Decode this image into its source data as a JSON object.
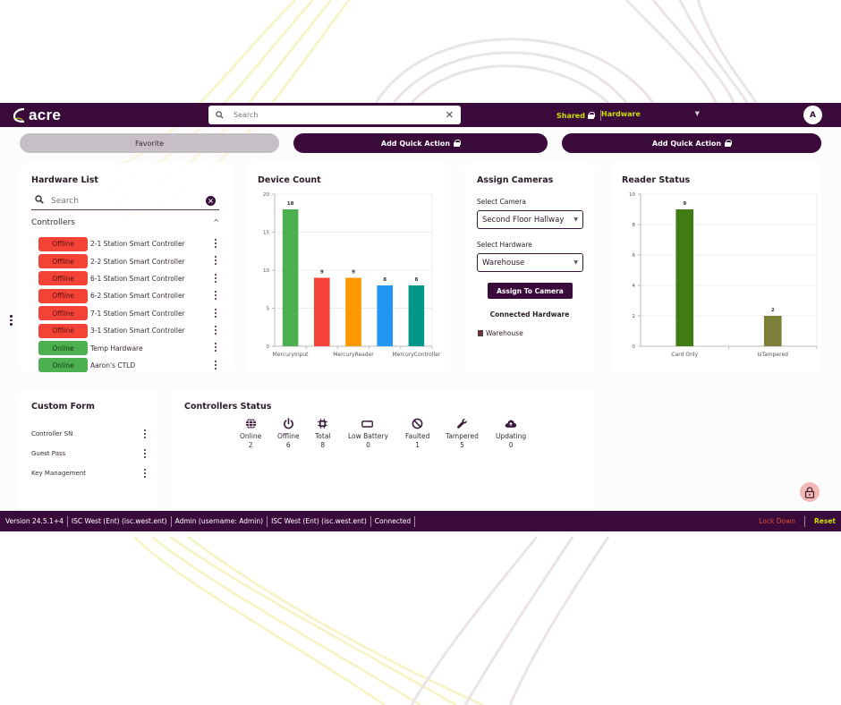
{
  "header": {
    "logo_text": "acre",
    "search": {
      "placeholder": "Search",
      "value": ""
    },
    "shared_label": "Shared",
    "hardware_select": "Hardware",
    "avatar_initial": "A"
  },
  "quick_actions": [
    {
      "label": "Favorite",
      "locked": false
    },
    {
      "label": "Add Quick Action",
      "locked": true
    },
    {
      "label": "Add Quick Action",
      "locked": true
    }
  ],
  "hardware_list": {
    "title": "Hardware List",
    "search_placeholder": "Search",
    "group": "Controllers",
    "items": [
      {
        "status": "Offline",
        "name": "2-1 Station Smart Controller"
      },
      {
        "status": "Offline",
        "name": "2-2 Station Smart Controller"
      },
      {
        "status": "Offline",
        "name": "6-1 Station Smart Controller"
      },
      {
        "status": "Offline",
        "name": "6-2 Station Smart Controller"
      },
      {
        "status": "Offline",
        "name": "7-1 Station Smart Controller"
      },
      {
        "status": "Offline",
        "name": "3-1 Station Smart Controller"
      },
      {
        "status": "Online",
        "name": "Temp Hardware"
      },
      {
        "status": "Online",
        "name": "Aaron's CTLD"
      }
    ]
  },
  "device_count": {
    "title": "Device Count"
  },
  "assign_cameras": {
    "title": "Assign Cameras",
    "camera_label": "Select Camera",
    "camera_value": "Second Floor Hallway",
    "hardware_label": "Select Hardware",
    "hardware_value": "Warehouse",
    "button": "Assign To Camera",
    "connected_title": "Connected Hardware",
    "connected_items": [
      "Warehouse"
    ]
  },
  "reader_status": {
    "title": "Reader Status"
  },
  "custom_form": {
    "title": "Custom Form",
    "items": [
      "Controller SN",
      "Guest Pass",
      "Key Management"
    ]
  },
  "controllers_status": {
    "title": "Controllers Status",
    "stats": [
      {
        "icon": "globe-icon",
        "label": "Online",
        "value": "2"
      },
      {
        "icon": "power-icon",
        "label": "Offline",
        "value": "6"
      },
      {
        "icon": "chip-icon",
        "label": "Total",
        "value": "8"
      },
      {
        "icon": "battery-low-icon",
        "label": "Low Battery",
        "value": "0"
      },
      {
        "icon": "block-icon",
        "label": "Faulted",
        "value": "1"
      },
      {
        "icon": "wrench-icon",
        "label": "Tampered",
        "value": "5"
      },
      {
        "icon": "cloud-upload-icon",
        "label": "Updating",
        "value": "0"
      }
    ]
  },
  "footer": {
    "segments": [
      "Version 24.5.1+4",
      "ISC West (Ent) (isc.west.ent)",
      "Admin (username: Admin)",
      "ISC West (Ent) (isc.west.ent)",
      "Connected"
    ],
    "lockdown": "Lock Down",
    "reset": "Reset"
  },
  "colors": {
    "brand": "#3a0a3a",
    "accent": "#c8e000",
    "offline": "#f44336",
    "online": "#4caf50",
    "lockdown": "#e05030"
  },
  "chart_data": [
    {
      "type": "bar",
      "title": "Device Count",
      "categories": [
        "MercuryInput",
        "",
        "MercuryReader",
        "",
        "MercuryController"
      ],
      "values": [
        18,
        9,
        9,
        8,
        8
      ],
      "colors": [
        "#4caf50",
        "#f44336",
        "#ff9800",
        "#2196f3",
        "#009688"
      ],
      "xlabel": "",
      "ylabel": "",
      "ylim": [
        0,
        20
      ],
      "yticks": [
        0,
        5,
        10,
        15,
        20
      ],
      "data_labels": true,
      "grid": true
    },
    {
      "type": "bar",
      "title": "Reader Status",
      "categories": [
        "Card Only",
        "IsTampered"
      ],
      "values": [
        9,
        2
      ],
      "colors": [
        "#3f7d14",
        "#7b7f3a"
      ],
      "xlabel": "",
      "ylabel": "",
      "ylim": [
        0,
        10
      ],
      "yticks": [
        0,
        2,
        4,
        6,
        8,
        10
      ],
      "data_labels": true,
      "grid": true
    }
  ]
}
